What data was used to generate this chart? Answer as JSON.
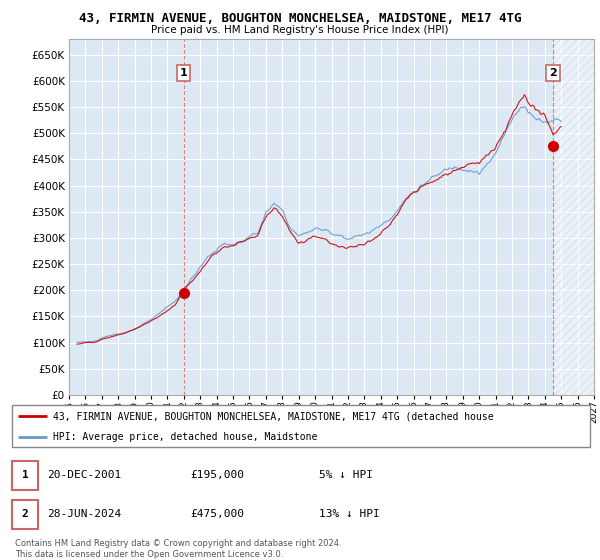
{
  "title": "43, FIRMIN AVENUE, BOUGHTON MONCHELSEA, MAIDSTONE, ME17 4TG",
  "subtitle": "Price paid vs. HM Land Registry's House Price Index (HPI)",
  "ylabel_ticks": [
    0,
    50000,
    100000,
    150000,
    200000,
    250000,
    300000,
    350000,
    400000,
    450000,
    500000,
    550000,
    600000,
    650000
  ],
  "ylim": [
    0,
    680000
  ],
  "xlim_start": 1995.5,
  "xlim_end": 2027.0,
  "xtick_years": [
    1995,
    1996,
    1997,
    1998,
    1999,
    2000,
    2001,
    2002,
    2003,
    2004,
    2005,
    2006,
    2007,
    2008,
    2009,
    2010,
    2011,
    2012,
    2013,
    2014,
    2015,
    2016,
    2017,
    2018,
    2019,
    2020,
    2021,
    2022,
    2023,
    2024,
    2025,
    2026,
    2027
  ],
  "sale1_x": 2002.0,
  "sale1_y": 195000,
  "sale2_x": 2024.5,
  "sale2_y": 475000,
  "price_color": "#cc0000",
  "hpi_color": "#6699cc",
  "hpi_fill_color": "#d0e4f7",
  "sale_marker_color": "#cc0000",
  "dashed_line_color": "#cc6666",
  "grid_color": "#ffffff",
  "bg_color": "#ffffff",
  "plot_bg_color": "#dce9f5",
  "legend_label_price": "43, FIRMIN AVENUE, BOUGHTON MONCHELSEA, MAIDSTONE, ME17 4TG (detached house",
  "legend_label_hpi": "HPI: Average price, detached house, Maidstone",
  "annotation1_date": "20-DEC-2001",
  "annotation1_price": "£195,000",
  "annotation1_hpi": "5% ↓ HPI",
  "annotation2_date": "28-JUN-2024",
  "annotation2_price": "£475,000",
  "annotation2_hpi": "13% ↓ HPI",
  "footer": "Contains HM Land Registry data © Crown copyright and database right 2024.\nThis data is licensed under the Open Government Licence v3.0.",
  "hatch_start": 2024.5
}
